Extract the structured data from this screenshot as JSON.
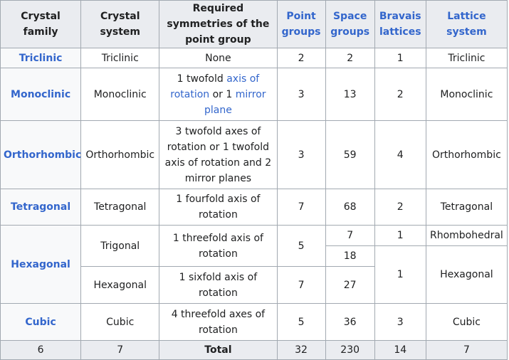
{
  "headers": {
    "crystal_family": "Crystal family",
    "crystal_system": "Crystal system",
    "required_symmetries": "Required symmetries of the point group",
    "point_groups": "Point groups",
    "space_groups": "Space groups",
    "bravais_lattices": "Bravais lattices",
    "lattice_system": "Lattice system"
  },
  "rows": {
    "triclinic": {
      "family": "Triclinic",
      "system": "Triclinic",
      "symmetry": "None",
      "point": "2",
      "space": "2",
      "bravais": "1",
      "lattice": "Triclinic"
    },
    "monoclinic": {
      "family": "Monoclinic",
      "system": "Monoclinic",
      "sym_a": "1 twofold ",
      "sym_link1": "axis of rotation",
      "sym_b": " or 1 ",
      "sym_link2": "mirror plane",
      "point": "3",
      "space": "13",
      "bravais": "2",
      "lattice": "Monoclinic"
    },
    "orthorhombic": {
      "family": "Orthorhombic",
      "system": "Orthorhombic",
      "symmetry": "3 twofold axes of rotation or 1 twofold axis of rotation and 2 mirror planes",
      "point": "3",
      "space": "59",
      "bravais": "4",
      "lattice": "Orthorhombic"
    },
    "tetragonal": {
      "family": "Tetragonal",
      "system": "Tetragonal",
      "symmetry": "1 fourfold axis of rotation",
      "point": "7",
      "space": "68",
      "bravais": "2",
      "lattice": "Tetragonal"
    },
    "hexagonal_family": "Hexagonal",
    "trigonal": {
      "system": "Trigonal",
      "symmetry": "1 threefold axis of rotation",
      "point": "5",
      "space_a": "7",
      "space_b": "18",
      "bravais_a": "1",
      "lattice_a": "Rhombohedral"
    },
    "hexagonal": {
      "system": "Hexagonal",
      "symmetry": "1 sixfold axis of rotation",
      "point": "7",
      "space": "27",
      "bravais": "1",
      "lattice": "Hexagonal"
    },
    "cubic": {
      "family": "Cubic",
      "system": "Cubic",
      "symmetry": "4 threefold axes of rotation",
      "point": "5",
      "space": "36",
      "bravais": "3",
      "lattice": "Cubic"
    }
  },
  "totals": {
    "families": "6",
    "systems": "7",
    "label": "Total",
    "point": "32",
    "space": "230",
    "bravais": "14",
    "lattice": "7"
  }
}
